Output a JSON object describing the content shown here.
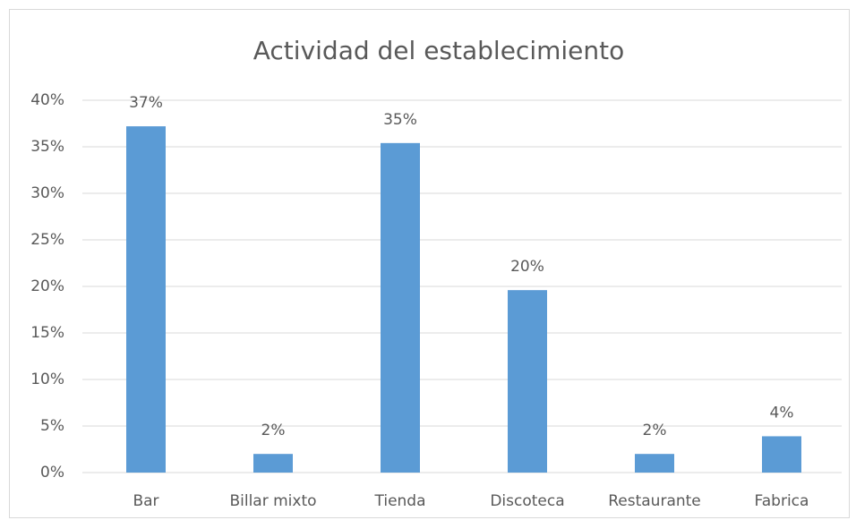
{
  "chart_data": {
    "type": "bar",
    "title": "Actividad del establecimiento",
    "categories": [
      "Bar",
      "Billar mixto",
      "Tienda",
      "Discoteca",
      "Restaurante",
      "Fabrica"
    ],
    "values": [
      37.2,
      2.0,
      35.4,
      19.6,
      2.0,
      3.9
    ],
    "value_labels": [
      "37%",
      "2%",
      "35%",
      "20%",
      "2%",
      "4%"
    ],
    "color": "#5b9bd5",
    "ylim": [
      0,
      40
    ],
    "yticks": [
      {
        "value": 0,
        "label": "0%"
      },
      {
        "value": 5,
        "label": "5%"
      },
      {
        "value": 10,
        "label": "10%"
      },
      {
        "value": 15,
        "label": "15%"
      },
      {
        "value": 20,
        "label": "20%"
      },
      {
        "value": 25,
        "label": "25%"
      },
      {
        "value": 30,
        "label": "30%"
      },
      {
        "value": 35,
        "label": "35%"
      },
      {
        "value": 40,
        "label": "40%"
      }
    ],
    "grid": true
  }
}
